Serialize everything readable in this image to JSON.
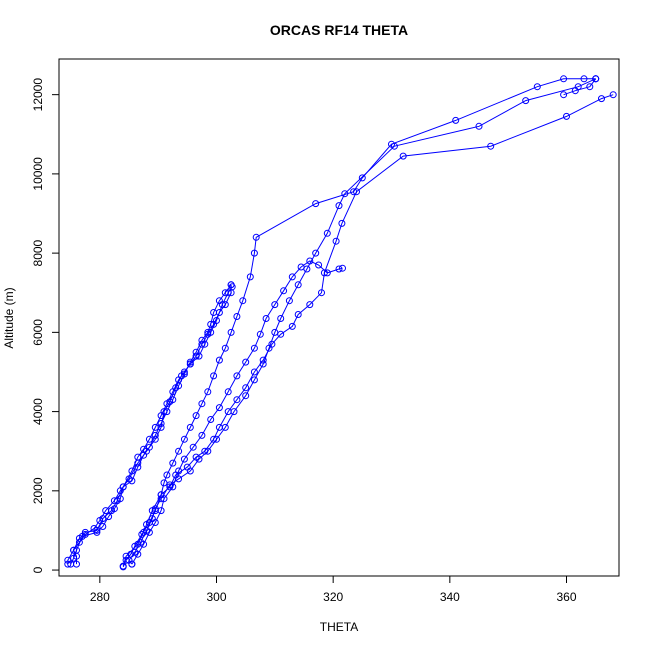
{
  "chart_data": {
    "type": "line",
    "title": "ORCAS RF14 THETA",
    "xlabel": "THETA",
    "ylabel": "Altitude (m)",
    "xlim": [
      273.0,
      369.0
    ],
    "ylim": [
      -150,
      12900
    ],
    "xticks": [
      280,
      300,
      320,
      340,
      360
    ],
    "yticks": [
      0,
      2000,
      4000,
      6000,
      8000,
      10000,
      12000
    ],
    "grid": false,
    "legend": "none",
    "marker": "open-circle",
    "color": "#0000ff",
    "series": [
      {
        "points": [
          [
            284.0,
            80
          ],
          [
            284.5,
            250
          ],
          [
            285.3,
            400
          ],
          [
            286.0,
            600
          ],
          [
            287.2,
            900
          ],
          [
            288.5,
            1200
          ],
          [
            289.5,
            1500
          ],
          [
            290.5,
            1900
          ],
          [
            291.0,
            2200
          ],
          [
            291.5,
            2400
          ],
          [
            292.5,
            2700
          ],
          [
            293.5,
            3000
          ],
          [
            294.5,
            3300
          ],
          [
            295.5,
            3600
          ],
          [
            296.5,
            3900
          ],
          [
            297.5,
            4200
          ],
          [
            298.5,
            4500
          ],
          [
            299.5,
            4900
          ],
          [
            300.5,
            5300
          ],
          [
            301.5,
            5600
          ],
          [
            302.5,
            6000
          ],
          [
            303.5,
            6400
          ],
          [
            304.5,
            6800
          ],
          [
            305.8,
            7400
          ],
          [
            306.5,
            8000
          ],
          [
            306.8,
            8400
          ],
          [
            317.0,
            9250
          ],
          [
            323.5,
            9550
          ],
          [
            325.0,
            9900
          ],
          [
            330.0,
            10750
          ],
          [
            341.0,
            11350
          ],
          [
            355.0,
            12200
          ],
          [
            359.5,
            12400
          ],
          [
            363.0,
            12400
          ],
          [
            365.0,
            12400
          ]
        ]
      },
      {
        "points": [
          [
            365.0,
            12400
          ],
          [
            362.0,
            12200
          ],
          [
            353.0,
            11850
          ],
          [
            345.0,
            11200
          ],
          [
            330.5,
            10700
          ],
          [
            322.0,
            9500
          ],
          [
            321.0,
            9200
          ],
          [
            319.0,
            8500
          ],
          [
            317.0,
            8000
          ],
          [
            315.5,
            7600
          ],
          [
            314.0,
            7200
          ],
          [
            312.5,
            6800
          ],
          [
            311.0,
            6350
          ],
          [
            310.0,
            6000
          ],
          [
            309.0,
            5600
          ],
          [
            308.0,
            5200
          ],
          [
            306.5,
            4800
          ],
          [
            305.0,
            4400
          ],
          [
            303.0,
            4000
          ],
          [
            301.5,
            3600
          ],
          [
            300.0,
            3300
          ],
          [
            298.5,
            3000
          ],
          [
            297.0,
            2800
          ],
          [
            295.5,
            2500
          ],
          [
            293.5,
            2300
          ],
          [
            292.0,
            2150
          ],
          [
            290.5,
            1800
          ],
          [
            289.5,
            1550
          ],
          [
            289.0,
            1300
          ],
          [
            288.0,
            1000
          ],
          [
            287.0,
            700
          ],
          [
            286.0,
            450
          ],
          [
            285.0,
            250
          ],
          [
            285.5,
            150
          ]
        ]
      },
      {
        "points": [
          [
            285.5,
            150
          ],
          [
            286.5,
            400
          ],
          [
            287.5,
            650
          ],
          [
            288.5,
            950
          ],
          [
            289.5,
            1200
          ],
          [
            290.5,
            1500
          ],
          [
            291.0,
            1800
          ],
          [
            292.5,
            2100
          ],
          [
            293.5,
            2500
          ],
          [
            294.5,
            2800
          ],
          [
            296.0,
            3100
          ],
          [
            297.5,
            3400
          ],
          [
            299.0,
            3800
          ],
          [
            300.5,
            4100
          ],
          [
            302.0,
            4500
          ],
          [
            303.5,
            4900
          ],
          [
            305.0,
            5250
          ],
          [
            306.5,
            5600
          ],
          [
            307.5,
            5950
          ],
          [
            308.5,
            6350
          ],
          [
            310.0,
            6700
          ],
          [
            311.5,
            7050
          ],
          [
            313.0,
            7400
          ],
          [
            314.5,
            7650
          ],
          [
            316.0,
            7800
          ],
          [
            317.5,
            7700
          ],
          [
            319.0,
            7500
          ],
          [
            321.0,
            7600
          ],
          [
            321.6,
            7620
          ]
        ]
      },
      {
        "points": [
          [
            368.0,
            12000
          ],
          [
            366.0,
            11900
          ],
          [
            360.0,
            11450
          ],
          [
            347.0,
            10700
          ],
          [
            332.0,
            10450
          ],
          [
            324.0,
            9550
          ],
          [
            321.5,
            8750
          ],
          [
            320.5,
            8300
          ],
          [
            318.5,
            7500
          ],
          [
            318.0,
            7000
          ],
          [
            316.0,
            6700
          ],
          [
            314.0,
            6450
          ],
          [
            313.0,
            6150
          ],
          [
            311.0,
            5950
          ],
          [
            309.5,
            5700
          ],
          [
            308.0,
            5300
          ],
          [
            306.5,
            5000
          ],
          [
            305.0,
            4600
          ],
          [
            303.5,
            4300
          ],
          [
            302.0,
            4000
          ],
          [
            300.5,
            3600
          ],
          [
            299.5,
            3300
          ],
          [
            298.0,
            3000
          ],
          [
            296.5,
            2850
          ],
          [
            295.0,
            2600
          ],
          [
            293.0,
            2400
          ],
          [
            292.0,
            2100
          ],
          [
            290.5,
            1900
          ],
          [
            289.0,
            1500
          ],
          [
            288.0,
            1150
          ],
          [
            287.5,
            950
          ],
          [
            286.5,
            650
          ],
          [
            284.5,
            350
          ],
          [
            284.0,
            100
          ]
        ]
      },
      {
        "points": [
          [
            365.0,
            12400
          ],
          [
            364.0,
            12200
          ],
          [
            361.5,
            12100
          ],
          [
            359.5,
            12000
          ]
        ]
      },
      {
        "points": [
          [
            274.5,
            150
          ],
          [
            274.5,
            250
          ],
          [
            275.5,
            500
          ],
          [
            276.5,
            800
          ],
          [
            277.5,
            950
          ],
          [
            279.5,
            1000
          ],
          [
            280.5,
            1300
          ],
          [
            282.0,
            1500
          ],
          [
            283.0,
            1750
          ],
          [
            284.0,
            2100
          ],
          [
            285.5,
            2500
          ],
          [
            286.5,
            2850
          ],
          [
            287.5,
            3050
          ],
          [
            288.5,
            3300
          ],
          [
            289.5,
            3600
          ],
          [
            290.5,
            3900
          ],
          [
            291.5,
            4200
          ],
          [
            292.5,
            4500
          ],
          [
            293.5,
            4800
          ],
          [
            294.5,
            5000
          ],
          [
            295.5,
            5200
          ],
          [
            296.5,
            5400
          ],
          [
            297.5,
            5700
          ],
          [
            298.5,
            5950
          ],
          [
            299.5,
            6200
          ],
          [
            300.5,
            6500
          ],
          [
            301.5,
            6700
          ],
          [
            302.5,
            7000
          ],
          [
            302.5,
            7200
          ]
        ]
      },
      {
        "points": [
          [
            302.5,
            7200
          ],
          [
            301.5,
            7000
          ],
          [
            300.5,
            6800
          ],
          [
            299.5,
            6500
          ],
          [
            299.0,
            6200
          ],
          [
            298.5,
            6000
          ],
          [
            297.5,
            5800
          ],
          [
            296.5,
            5500
          ],
          [
            295.5,
            5250
          ],
          [
            294.5,
            4950
          ],
          [
            293.5,
            4650
          ],
          [
            292.5,
            4300
          ],
          [
            291.5,
            4000
          ],
          [
            290.5,
            3700
          ],
          [
            289.5,
            3400
          ],
          [
            288.5,
            3100
          ],
          [
            287.5,
            2900
          ],
          [
            286.5,
            2600
          ],
          [
            285.5,
            2250
          ],
          [
            284.0,
            2100
          ],
          [
            283.5,
            1800
          ],
          [
            282.5,
            1550
          ],
          [
            281.5,
            1350
          ],
          [
            280.5,
            1100
          ],
          [
            279.5,
            950
          ],
          [
            277.0,
            850
          ],
          [
            276.0,
            500
          ],
          [
            275.5,
            300
          ],
          [
            275.0,
            150
          ]
        ]
      },
      {
        "points": [
          [
            276.0,
            150
          ],
          [
            276.0,
            350
          ],
          [
            275.5,
            500
          ],
          [
            276.5,
            700
          ],
          [
            277.5,
            900
          ],
          [
            279.0,
            1050
          ],
          [
            280.0,
            1250
          ],
          [
            281.0,
            1500
          ],
          [
            282.5,
            1750
          ],
          [
            283.5,
            2000
          ],
          [
            285.0,
            2300
          ],
          [
            286.5,
            2700
          ],
          [
            288.0,
            3000
          ],
          [
            289.5,
            3300
          ],
          [
            290.5,
            3600
          ],
          [
            291.0,
            4000
          ],
          [
            292.0,
            4250
          ],
          [
            293.0,
            4600
          ],
          [
            294.0,
            4900
          ],
          [
            295.5,
            5200
          ],
          [
            297.0,
            5400
          ],
          [
            298.0,
            5700
          ],
          [
            299.0,
            6000
          ],
          [
            300.0,
            6300
          ],
          [
            301.0,
            6700
          ],
          [
            302.0,
            7000
          ],
          [
            302.7,
            7150
          ]
        ]
      }
    ]
  }
}
